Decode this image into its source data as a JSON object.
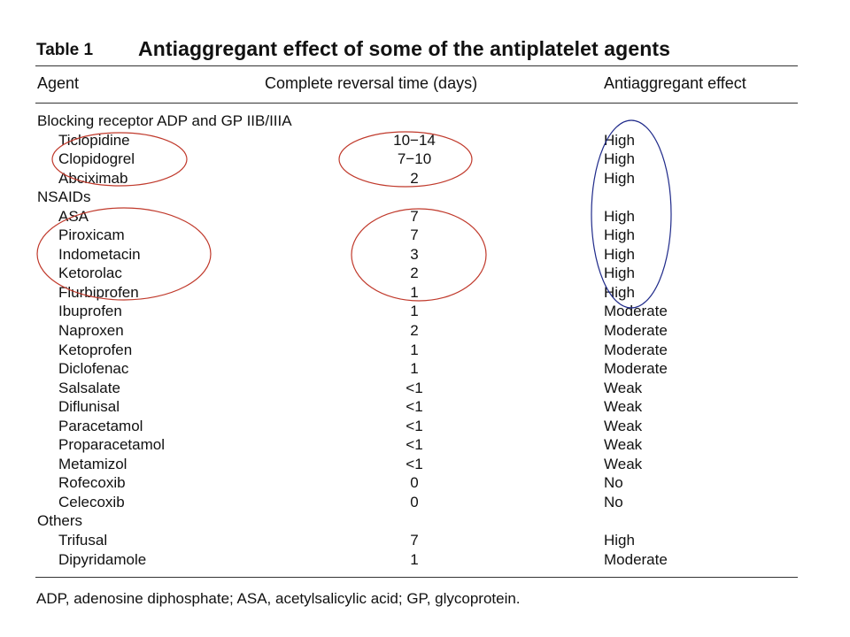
{
  "table": {
    "label": "Table 1",
    "title": "Antiaggregant effect of some of the antiplatelet agents",
    "columns": [
      "Agent",
      "Complete reversal time (days)",
      "Antiaggregant effect"
    ],
    "rows": [
      {
        "kind": "group",
        "agent": "Blocking receptor ADP and GP IIB/IIIA",
        "time": "",
        "effect": ""
      },
      {
        "kind": "item",
        "agent": "Ticlopidine",
        "time": "10−14",
        "effect": "High"
      },
      {
        "kind": "item",
        "agent": "Clopidogrel",
        "time": "7−10",
        "effect": "High"
      },
      {
        "kind": "item",
        "agent": "Abciximab",
        "time": "2",
        "effect": "High"
      },
      {
        "kind": "group",
        "agent": "NSAIDs",
        "time": "",
        "effect": ""
      },
      {
        "kind": "item",
        "agent": "ASA",
        "time": "7",
        "effect": "High"
      },
      {
        "kind": "item",
        "agent": "Piroxicam",
        "time": "7",
        "effect": "High"
      },
      {
        "kind": "item",
        "agent": "Indometacin",
        "time": "3",
        "effect": "High"
      },
      {
        "kind": "item",
        "agent": "Ketorolac",
        "time": "2",
        "effect": "High"
      },
      {
        "kind": "item",
        "agent": "Flurbiprofen",
        "time": "1",
        "effect": "High"
      },
      {
        "kind": "item",
        "agent": "Ibuprofen",
        "time": "1",
        "effect": "Moderate"
      },
      {
        "kind": "item",
        "agent": "Naproxen",
        "time": "2",
        "effect": "Moderate"
      },
      {
        "kind": "item",
        "agent": "Ketoprofen",
        "time": "1",
        "effect": "Moderate"
      },
      {
        "kind": "item",
        "agent": "Diclofenac",
        "time": "1",
        "effect": "Moderate"
      },
      {
        "kind": "item",
        "agent": "Salsalate",
        "time": "<1",
        "effect": "Weak"
      },
      {
        "kind": "item",
        "agent": "Diflunisal",
        "time": "<1",
        "effect": "Weak"
      },
      {
        "kind": "item",
        "agent": "Paracetamol",
        "time": "<1",
        "effect": "Weak"
      },
      {
        "kind": "item",
        "agent": "Proparacetamol",
        "time": "<1",
        "effect": "Weak"
      },
      {
        "kind": "item",
        "agent": "Metamizol",
        "time": "<1",
        "effect": "Weak"
      },
      {
        "kind": "item",
        "agent": "Rofecoxib",
        "time": "0",
        "effect": "No"
      },
      {
        "kind": "item",
        "agent": "Celecoxib",
        "time": "0",
        "effect": "No"
      },
      {
        "kind": "group",
        "agent": "Others",
        "time": "",
        "effect": ""
      },
      {
        "kind": "item",
        "agent": "Trifusal",
        "time": "7",
        "effect": "High"
      },
      {
        "kind": "item",
        "agent": "Dipyridamole",
        "time": "1",
        "effect": "Moderate"
      }
    ],
    "footnote": "ADP, adenosine diphosphate; ASA, acetylsalicylic acid; GP, glycoprotein."
  },
  "annotation_colors": {
    "red_ellipse": "#c0392b",
    "blue_ellipse": "#1f2a8a"
  }
}
